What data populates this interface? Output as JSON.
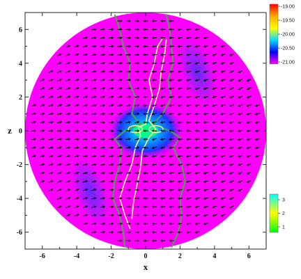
{
  "chart_data": {
    "type": "heatmap",
    "plot": "circular-domain-map-with-vector-field",
    "xlabel": "x",
    "ylabel": "z",
    "xlim": [
      -7,
      7
    ],
    "ylim": [
      -7,
      7
    ],
    "x_ticks": [
      -6,
      -4,
      -2,
      0,
      2,
      4,
      6
    ],
    "y_ticks": [
      -6,
      -4,
      -2,
      0,
      2,
      4,
      6
    ],
    "domain_radius": 7,
    "vector_field_grid_step": 0.5,
    "colors": {
      "background": "#ff00ff",
      "low": "#ff00ff",
      "mid": "#3322ff",
      "high_core": "#00ff88",
      "contour_outer": "#44aa44",
      "contour_inner": "#ffff88",
      "arrows": "#000000"
    },
    "colorbar_main": {
      "labels": [
        "-19.00",
        "-19.50",
        "-20.00",
        "-20.50",
        "-21.00"
      ],
      "values": [
        -19.0,
        -19.5,
        -20.0,
        -20.5,
        -21.0
      ],
      "colors": [
        "#ff0000",
        "#ffaa00",
        "#ffff00",
        "#00ddff",
        "#0000ff",
        "#ff00ff"
      ]
    },
    "colorbar_secondary": {
      "labels": [
        "3",
        "2",
        "1"
      ],
      "values": [
        3,
        2,
        1
      ],
      "colors": [
        "#00ffff",
        "#ffff00",
        "#00ff00"
      ]
    },
    "features": {
      "density_minima_blobs": [
        {
          "x": 3.0,
          "z": 3.5
        },
        {
          "x": -3.2,
          "z": -3.6
        }
      ],
      "core": {
        "x": 0.0,
        "z": 0.0
      }
    }
  }
}
